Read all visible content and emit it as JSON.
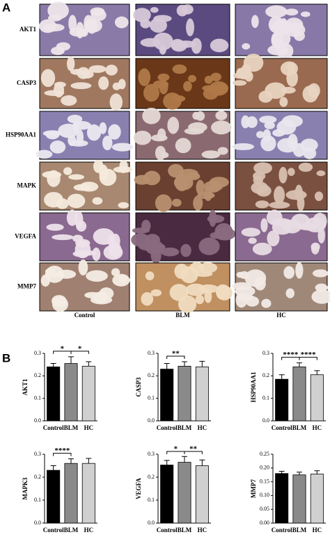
{
  "panel_a": {
    "label": "A",
    "rows": [
      "AKT1",
      "CASP3",
      "HSP90AA1",
      "MAPK",
      "VEGFA",
      "MMP7"
    ],
    "columns": [
      "Control",
      "BLM",
      "HC"
    ]
  },
  "panel_b_label": "B",
  "chart_data": [
    {
      "type": "bar",
      "ylabel": "AKT1",
      "categories": [
        "Control",
        "BLM",
        "HC"
      ],
      "values": [
        0.24,
        0.255,
        0.243
      ],
      "errors": [
        0.015,
        0.03,
        0.02
      ],
      "colors": [
        "#000000",
        "#8a8a8a",
        "#d0d0d0"
      ],
      "ylim": [
        0,
        0.3
      ],
      "yticks": [
        {
          "value": 0,
          "label": "0.0"
        },
        0.1,
        0.2,
        0.3
      ],
      "annotations": [
        {
          "from": 0,
          "to": 1,
          "label": "*"
        },
        {
          "from": 1,
          "to": 2,
          "label": "*"
        }
      ]
    },
    {
      "type": "bar",
      "ylabel": "CASP3",
      "categories": [
        "Control",
        "BLM",
        "HC"
      ],
      "values": [
        0.23,
        0.243,
        0.24
      ],
      "errors": [
        0.025,
        0.02,
        0.025
      ],
      "colors": [
        "#000000",
        "#8a8a8a",
        "#d0d0d0"
      ],
      "ylim": [
        0,
        0.3
      ],
      "yticks": [
        {
          "value": 0,
          "label": "0.0"
        },
        0.1,
        0.2,
        0.3
      ],
      "annotations": [
        {
          "from": 0,
          "to": 1,
          "label": "**"
        }
      ]
    },
    {
      "type": "bar",
      "ylabel": "HSP90AA1",
      "categories": [
        "Control",
        "BLM",
        "HC"
      ],
      "values": [
        0.185,
        0.24,
        0.205
      ],
      "errors": [
        0.02,
        0.018,
        0.018
      ],
      "colors": [
        "#000000",
        "#8a8a8a",
        "#d0d0d0"
      ],
      "ylim": [
        0,
        0.3
      ],
      "yticks": [
        {
          "value": 0,
          "label": "0.0"
        },
        0.1,
        0.2,
        0.3
      ],
      "annotations": [
        {
          "from": 0,
          "to": 1,
          "label": "****"
        },
        {
          "from": 1,
          "to": 2,
          "label": "****"
        }
      ]
    },
    {
      "type": "bar",
      "ylabel": "MAPK3",
      "categories": [
        "Control",
        "BLM",
        "HC"
      ],
      "values": [
        0.23,
        0.26,
        0.26
      ],
      "errors": [
        0.02,
        0.02,
        0.022
      ],
      "colors": [
        "#000000",
        "#8a8a8a",
        "#d0d0d0"
      ],
      "ylim": [
        0,
        0.3
      ],
      "yticks": [
        {
          "value": 0,
          "label": "0.0"
        },
        0.1,
        0.2,
        0.3
      ],
      "annotations": [
        {
          "from": 0,
          "to": 1,
          "label": "****"
        }
      ]
    },
    {
      "type": "bar",
      "ylabel": "VEGFA",
      "categories": [
        "Control",
        "BLM",
        "HC"
      ],
      "values": [
        0.253,
        0.265,
        0.25
      ],
      "errors": [
        0.02,
        0.025,
        0.025
      ],
      "colors": [
        "#000000",
        "#8a8a8a",
        "#d0d0d0"
      ],
      "ylim": [
        0,
        0.3
      ],
      "yticks": [
        {
          "value": 0,
          "label": "0.0"
        },
        0.1,
        0.2,
        0.3
      ],
      "annotations": [
        {
          "from": 0,
          "to": 1,
          "label": "*"
        },
        {
          "from": 1,
          "to": 2,
          "label": "**"
        }
      ]
    },
    {
      "type": "bar",
      "ylabel": "MMP7",
      "categories": [
        "Control",
        "BLM",
        "HC"
      ],
      "values": [
        0.18,
        0.175,
        0.178
      ],
      "errors": [
        0.008,
        0.01,
        0.012
      ],
      "colors": [
        "#000000",
        "#8a8a8a",
        "#d0d0d0"
      ],
      "ylim": [
        0,
        0.25
      ],
      "yticks": [
        {
          "value": 0,
          "label": "0.00"
        },
        0.05,
        {
          "value": 0.1,
          "label": "0.10"
        },
        0.15,
        {
          "value": 0.2,
          "label": "0.20"
        },
        0.25
      ],
      "annotations": []
    }
  ]
}
